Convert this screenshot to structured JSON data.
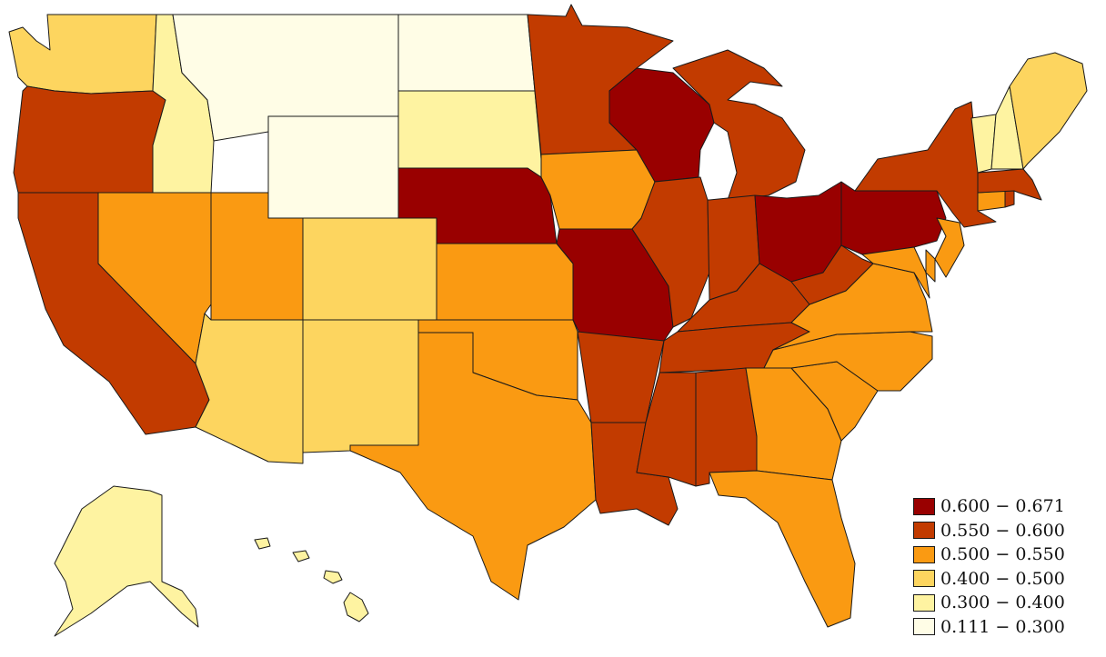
{
  "colors": {
    "c1": "#990000",
    "c2": "#c23b00",
    "c3": "#fa9a12",
    "c4": "#fdd55f",
    "c5": "#fef3a1",
    "c6": "#fffde6"
  },
  "legend": {
    "items": [
      {
        "label": "0.600 − 0.671",
        "color": "#990000"
      },
      {
        "label": "0.550 − 0.600",
        "color": "#c23b00"
      },
      {
        "label": "0.500 − 0.550",
        "color": "#fa9a12"
      },
      {
        "label": "0.400 − 0.500",
        "color": "#fdd55f"
      },
      {
        "label": "0.300 − 0.400",
        "color": "#fef3a1"
      },
      {
        "label": "0.111 − 0.300",
        "color": "#fffde6"
      }
    ]
  },
  "states": [
    {
      "name": "Washington",
      "class": "0.400 − 0.500"
    },
    {
      "name": "Oregon",
      "class": "0.550 − 0.600"
    },
    {
      "name": "California",
      "class": "0.550 − 0.600"
    },
    {
      "name": "Idaho",
      "class": "0.300 − 0.400"
    },
    {
      "name": "Nevada",
      "class": "0.500 − 0.550"
    },
    {
      "name": "Montana",
      "class": "0.111 − 0.300"
    },
    {
      "name": "Wyoming",
      "class": "0.111 − 0.300"
    },
    {
      "name": "Utah",
      "class": "0.500 − 0.550"
    },
    {
      "name": "Arizona",
      "class": "0.400 − 0.500"
    },
    {
      "name": "Colorado",
      "class": "0.400 − 0.500"
    },
    {
      "name": "New Mexico",
      "class": "0.400 − 0.500"
    },
    {
      "name": "North Dakota",
      "class": "0.111 − 0.300"
    },
    {
      "name": "South Dakota",
      "class": "0.300 − 0.400"
    },
    {
      "name": "Nebraska",
      "class": "0.600 − 0.671"
    },
    {
      "name": "Kansas",
      "class": "0.500 − 0.550"
    },
    {
      "name": "Oklahoma",
      "class": "0.500 − 0.550"
    },
    {
      "name": "Texas",
      "class": "0.500 − 0.550"
    },
    {
      "name": "Minnesota",
      "class": "0.550 − 0.600"
    },
    {
      "name": "Iowa",
      "class": "0.500 − 0.550"
    },
    {
      "name": "Missouri",
      "class": "0.600 − 0.671"
    },
    {
      "name": "Arkansas",
      "class": "0.550 − 0.600"
    },
    {
      "name": "Louisiana",
      "class": "0.550 − 0.600"
    },
    {
      "name": "Wisconsin",
      "class": "0.600 − 0.671"
    },
    {
      "name": "Illinois",
      "class": "0.550 − 0.600"
    },
    {
      "name": "Michigan",
      "class": "0.550 − 0.600"
    },
    {
      "name": "Indiana",
      "class": "0.550 − 0.600"
    },
    {
      "name": "Ohio",
      "class": "0.600 − 0.671"
    },
    {
      "name": "Kentucky",
      "class": "0.550 − 0.600"
    },
    {
      "name": "Tennessee",
      "class": "0.550 − 0.600"
    },
    {
      "name": "Mississippi",
      "class": "0.550 − 0.600"
    },
    {
      "name": "Alabama",
      "class": "0.550 − 0.600"
    },
    {
      "name": "Georgia",
      "class": "0.500 − 0.550"
    },
    {
      "name": "Florida",
      "class": "0.500 − 0.550"
    },
    {
      "name": "South Carolina",
      "class": "0.500 − 0.550"
    },
    {
      "name": "North Carolina",
      "class": "0.500 − 0.550"
    },
    {
      "name": "Virginia",
      "class": "0.500 − 0.550"
    },
    {
      "name": "West Virginia",
      "class": "0.550 − 0.600"
    },
    {
      "name": "Pennsylvania",
      "class": "0.600 − 0.671"
    },
    {
      "name": "New York",
      "class": "0.550 − 0.600"
    },
    {
      "name": "Maryland",
      "class": "0.500 − 0.550"
    },
    {
      "name": "Delaware",
      "class": "0.500 − 0.550"
    },
    {
      "name": "New Jersey",
      "class": "0.500 − 0.550"
    },
    {
      "name": "Connecticut",
      "class": "0.500 − 0.550"
    },
    {
      "name": "Rhode Island",
      "class": "0.550 − 0.600"
    },
    {
      "name": "Massachusetts",
      "class": "0.550 − 0.600"
    },
    {
      "name": "Vermont",
      "class": "0.300 − 0.400"
    },
    {
      "name": "New Hampshire",
      "class": "0.300 − 0.400"
    },
    {
      "name": "Maine",
      "class": "0.400 − 0.500"
    },
    {
      "name": "Alaska",
      "class": "0.300 − 0.400"
    },
    {
      "name": "Hawaii",
      "class": "0.300 − 0.400"
    }
  ]
}
